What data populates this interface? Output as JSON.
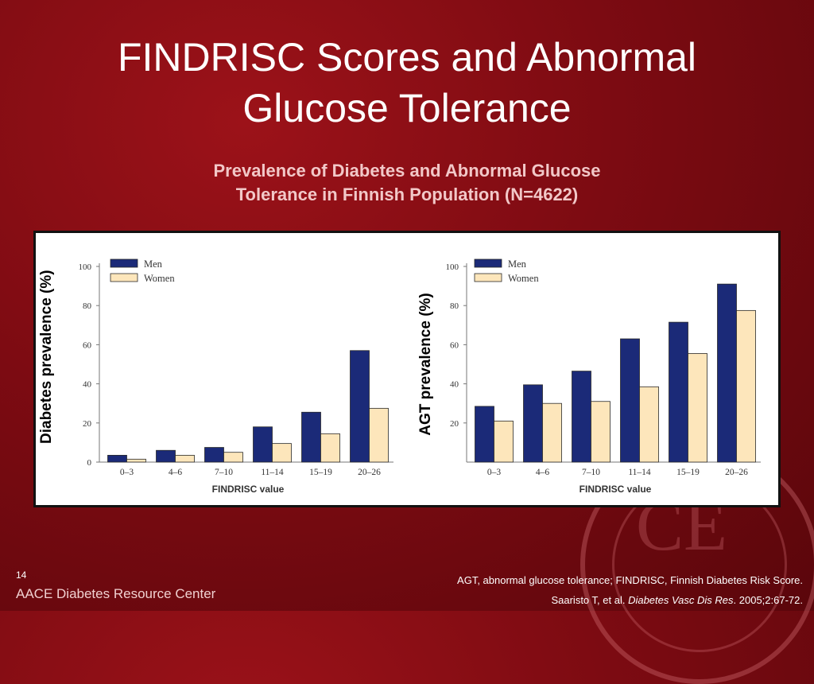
{
  "slide": {
    "title_line1": "FINDRISC Scores and Abnormal",
    "title_line2": "Glucose Tolerance",
    "subtitle_line1": "Prevalence of Diabetes and Abnormal Glucose",
    "subtitle_line2": "Tolerance in Finnish Population (N=4622)",
    "slide_number": "14",
    "brand": "AACE Diabetes Resource Center",
    "footnote": "AGT, abnormal glucose tolerance; FINDRISC, Finnish Diabetes Risk Score.",
    "citation_authors": "Saaristo T, et al. ",
    "citation_journal": "Diabetes Vasc Dis Res",
    "citation_rest": ". 2005;2:67-72."
  },
  "colors": {
    "men": "#1b2a78",
    "women": "#fde6bb"
  },
  "chart_data": [
    {
      "type": "bar",
      "categories": [
        "0–3",
        "4–6",
        "7–10",
        "11–14",
        "15–19",
        "20–26"
      ],
      "series": [
        {
          "name": "Men",
          "values": [
            3.5,
            6,
            7.5,
            18,
            25.5,
            57
          ]
        },
        {
          "name": "Women",
          "values": [
            1.5,
            3.5,
            5,
            9.5,
            14.5,
            27.5
          ]
        }
      ],
      "xlabel": "FINDRISC value",
      "ylabel": "Diabetes prevalence (%)",
      "ylim": [
        0,
        100
      ],
      "yticks": [
        "0",
        "20",
        "40",
        "60",
        "80",
        "100"
      ],
      "legend": "top-left"
    },
    {
      "type": "bar",
      "categories": [
        "0–3",
        "4–6",
        "7–10",
        "11–14",
        "15–19",
        "20–26"
      ],
      "series": [
        {
          "name": "Men",
          "values": [
            28.5,
            39.5,
            46.5,
            63,
            71.5,
            91
          ]
        },
        {
          "name": "Women",
          "values": [
            21,
            30,
            31,
            38.5,
            55.5,
            77.5
          ]
        }
      ],
      "xlabel": "FINDRISC value",
      "ylabel": "AGT prevalence (%)",
      "ylim": [
        0,
        100
      ],
      "yticks": [
        "20",
        "40",
        "60",
        "80",
        "100"
      ],
      "legend": "top-left"
    }
  ]
}
